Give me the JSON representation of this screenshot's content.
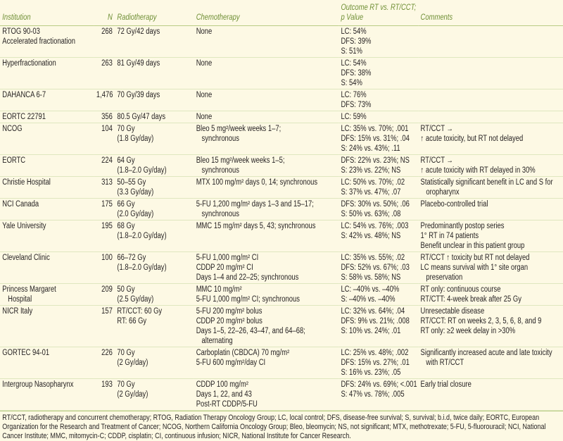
{
  "table": {
    "header": [
      [
        "Institution"
      ],
      [
        "N"
      ],
      [
        "Radiotherapy"
      ],
      [
        "Chemotherapy"
      ],
      [
        "Outcome RT vs. RT/CCT;",
        "p Value"
      ],
      [
        "Comments"
      ]
    ],
    "rows": [
      [
        [
          "RTOG 90-03",
          "Accelerated fractionation"
        ],
        [
          "268"
        ],
        [
          "72 Gy/42 days"
        ],
        [
          "None"
        ],
        [
          "LC: 54%",
          "DFS: 39%",
          "S: 51%"
        ],
        []
      ],
      [
        [
          "Hyperfractionation"
        ],
        [
          "263"
        ],
        [
          "81 Gy/49 days"
        ],
        [
          "None"
        ],
        [
          "LC: 54%",
          "DFS: 38%",
          "S: 54%"
        ],
        []
      ],
      [
        [
          "DAHANCA 6-7"
        ],
        [
          "1,476"
        ],
        [
          "70 Gy/39 days"
        ],
        [
          "None"
        ],
        [
          "LC: 76%",
          "DFS: 73%"
        ],
        []
      ],
      [
        [
          "EORTC 22791"
        ],
        [
          "356"
        ],
        [
          "80.5 Gy/47 days"
        ],
        [
          "None"
        ],
        [
          "LC: 59%"
        ],
        []
      ],
      [
        [
          "NCOG"
        ],
        [
          "104"
        ],
        [
          "70 Gy",
          "(1.8 Gy/day)"
        ],
        [
          "Bleo 5 mg²/week weeks 1–7;",
          "   synchronous"
        ],
        [
          "LC: 35% vs. 70%; .001",
          "DFS: 15% vs. 31%; .04",
          "S: 24% vs. 43%; .11"
        ],
        [
          "RT/CCT →",
          "↑ acute toxicity, but RT not delayed"
        ]
      ],
      [
        [
          "EORTC"
        ],
        [
          "224"
        ],
        [
          "64 Gy",
          "(1.8–2.0 Gy/day)"
        ],
        [
          "Bleo 15 mg²/week weeks 1–5;",
          "   synchronous"
        ],
        [
          "DFS: 22% vs. 23%; NS",
          "S: 23% vs. 22%; NS"
        ],
        [
          "RT/CCT →",
          "↑ acute toxicity with RT delayed in 30%"
        ]
      ],
      [
        [
          "Christie Hospital"
        ],
        [
          "313"
        ],
        [
          "50–55 Gy",
          "(3.3 Gy/day)"
        ],
        [
          "MTX 100 mg/m² days 0, 14; synchronous"
        ],
        [
          "LC: 50% vs. 70%; .02",
          "S: 37% vs. 47%; .07"
        ],
        [
          "Statistically significant benefit in LC and S for",
          "   oropharynx"
        ]
      ],
      [
        [
          "NCI Canada"
        ],
        [
          "175"
        ],
        [
          "66 Gy",
          "(2.0 Gy/day)"
        ],
        [
          "5-FU 1,200 mg/m² days 1–3 and 15–17;",
          "   synchronous"
        ],
        [
          "DFS: 30% vs. 50%; .06",
          "S: 50% vs. 63%; .08"
        ],
        [
          "Placebo-controlled trial"
        ]
      ],
      [
        [
          "Yale University"
        ],
        [
          "195"
        ],
        [
          "68 Gy",
          "(1.8–2.0 Gy/day)"
        ],
        [
          "MMC 15 mg/m² days 5, 43; synchronous"
        ],
        [
          "LC: 54% vs. 76%; .003",
          "S: 42% vs. 48%; NS"
        ],
        [
          "Predominantly postop series",
          "1° RT in 74 patients",
          "Benefit unclear in this patient group"
        ]
      ],
      [
        [
          "Cleveland Clinic"
        ],
        [
          "100"
        ],
        [
          "66–72 Gy",
          "(1.8–2.0 Gy/day)"
        ],
        [
          "5-FU 1,000 mg/m² CI",
          "CDDP 20 mg/m² CI",
          "Days 1–4 and 22–25; synchronous"
        ],
        [
          "LC: 35% vs. 55%; .02",
          "DFS: 52% vs. 67%; .03",
          "S: 58% vs. 58%; NS"
        ],
        [
          "RT/CCT ↑ toxicity but RT not delayed",
          "LC means survival with 1° site organ",
          "   preservation"
        ]
      ],
      [
        [
          "Princess Margaret",
          "   Hospital"
        ],
        [
          "209"
        ],
        [
          "50 Gy",
          "(2.5 Gy/day)"
        ],
        [
          "MMC 10 mg/m²",
          "5-FU 1,000 mg/m² CI; synchronous"
        ],
        [
          "LC: –40% vs. –40%",
          "S: –40% vs. –40%"
        ],
        [
          "RT only: continuous course",
          "RT/CTT: 4-week break after 25 Gy"
        ]
      ],
      [
        [
          "NICR Italy"
        ],
        [
          "157"
        ],
        [
          "RT/CCT: 60 Gy",
          "RT: 66 Gy"
        ],
        [
          "5-FU 200 mg/m² bolus",
          "CDDP 20 mg/m² bolus",
          "Days 1–5, 22–26, 43–47, and 64–68;",
          "   alternating"
        ],
        [
          "LC: 32% vs. 64%; .04",
          "DFS: 9% vs. 21%; .008",
          "S: 10% vs. 24%; .01"
        ],
        [
          "Unresectable disease",
          "RT/CCT: RT on weeks 2, 3, 5, 6, 8, and 9",
          "RT only: ≥2 week delay in >30%"
        ]
      ],
      [
        [
          "GORTEC 94-01"
        ],
        [
          "226"
        ],
        [
          "70 Gy",
          "(2 Gy/day)"
        ],
        [
          "Carboplatin (CBDCA) 70 mg/m²",
          "5-FU 600 mg/m²/day CI"
        ],
        [
          "LC: 25% vs. 48%; .002",
          "DFS: 15% vs. 27%; .01",
          "S: 16% vs. 23%; .05"
        ],
        [
          "Significantly increased acute and late toxicity",
          "   with RT/CCT"
        ]
      ],
      [
        [
          "Intergroup Nasopharynx"
        ],
        [
          "193"
        ],
        [
          "70 Gy",
          "(2 Gy/day)"
        ],
        [
          "CDDP 100 mg/m²",
          "Days 1, 22, and 43",
          "Post-RT CDDP/5-FU"
        ],
        [
          "DFS: 24% vs. 69%; <.001",
          "S: 47% vs. 78%; .005"
        ],
        [
          "Early trial closure"
        ]
      ]
    ]
  },
  "footnote": "RT/CCT, radiotherapy and concurrent chemotherapy; RTOG, Radiation Therapy Oncology Group; LC, local control; DFS, disease-free survival; S, survival; b.i.d, twice daily; EORTC, European Organization for the Research and Treatment of Cancer; NCOG, Northern California Oncology Group; Bleo, bleomycin; NS, not significant; MTX, methotrexate; 5-FU, 5-fluorouracil; NCI, National Cancer Institute; MMC, mitomycin-C; CDDP, cisplatin; CI, continuous infusion; NICR, National Institute for Cancer Research."
}
